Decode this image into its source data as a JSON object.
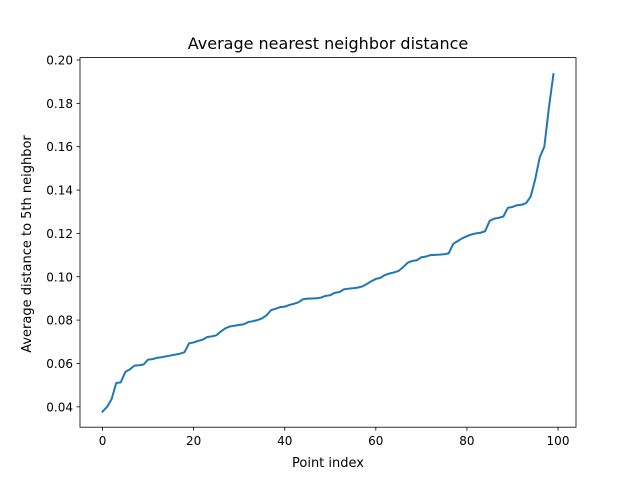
{
  "chart_data": {
    "type": "line",
    "title": "Average nearest neighbor distance",
    "xlabel": "Point index",
    "ylabel": "Average distance to 5th neighbor",
    "xlim": [
      -4.95,
      103.95
    ],
    "ylim": [
      0.0306,
      0.2011
    ],
    "xticks": [
      0,
      20,
      40,
      60,
      80,
      100
    ],
    "xtick_labels": [
      "0",
      "20",
      "40",
      "60",
      "80",
      "100"
    ],
    "yticks": [
      0.04,
      0.06,
      0.08,
      0.1,
      0.12,
      0.14,
      0.16,
      0.18,
      0.2
    ],
    "ytick_labels": [
      "0.04",
      "0.06",
      "0.08",
      "0.10",
      "0.12",
      "0.14",
      "0.16",
      "0.18",
      "0.20"
    ],
    "grid": false,
    "legend": null,
    "series": [
      {
        "color": "#1f77b4",
        "x": [
          0,
          1,
          2,
          3,
          4,
          5,
          6,
          7,
          8,
          9,
          10,
          11,
          12,
          13,
          14,
          15,
          16,
          17,
          18,
          19,
          20,
          21,
          22,
          23,
          24,
          25,
          26,
          27,
          28,
          29,
          30,
          31,
          32,
          33,
          34,
          35,
          36,
          37,
          38,
          39,
          40,
          41,
          42,
          43,
          44,
          45,
          46,
          47,
          48,
          49,
          50,
          51,
          52,
          53,
          54,
          55,
          56,
          57,
          58,
          59,
          60,
          61,
          62,
          63,
          64,
          65,
          66,
          67,
          68,
          69,
          70,
          71,
          72,
          73,
          74,
          75,
          76,
          77,
          78,
          79,
          80,
          81,
          82,
          83,
          84,
          85,
          86,
          87,
          88,
          89,
          90,
          91,
          92,
          93,
          94,
          95,
          96,
          97,
          98,
          99
        ],
        "y": [
          0.0378,
          0.04,
          0.0436,
          0.051,
          0.0513,
          0.0561,
          0.0573,
          0.059,
          0.0592,
          0.0595,
          0.0618,
          0.062,
          0.0626,
          0.0629,
          0.0633,
          0.0637,
          0.0641,
          0.0645,
          0.0652,
          0.0693,
          0.0697,
          0.0704,
          0.071,
          0.0722,
          0.0725,
          0.073,
          0.0748,
          0.0763,
          0.0771,
          0.0774,
          0.0778,
          0.0781,
          0.0791,
          0.0795,
          0.08,
          0.0808,
          0.0822,
          0.0846,
          0.0852,
          0.086,
          0.0862,
          0.087,
          0.0875,
          0.0882,
          0.0896,
          0.0899,
          0.09,
          0.0901,
          0.0904,
          0.0912,
          0.0915,
          0.0926,
          0.0929,
          0.0942,
          0.0945,
          0.0947,
          0.095,
          0.0955,
          0.0966,
          0.0979,
          0.099,
          0.0995,
          0.1008,
          0.1015,
          0.102,
          0.1027,
          0.1044,
          0.1065,
          0.1073,
          0.1076,
          0.109,
          0.1093,
          0.11,
          0.1101,
          0.1102,
          0.1104,
          0.1108,
          0.1152,
          0.1165,
          0.1178,
          0.1187,
          0.1195,
          0.12,
          0.1203,
          0.121,
          0.1258,
          0.1268,
          0.1272,
          0.1278,
          0.1318,
          0.1322,
          0.133,
          0.1332,
          0.134,
          0.137,
          0.145,
          0.1552,
          0.16,
          0.178,
          0.1935
        ]
      }
    ]
  }
}
